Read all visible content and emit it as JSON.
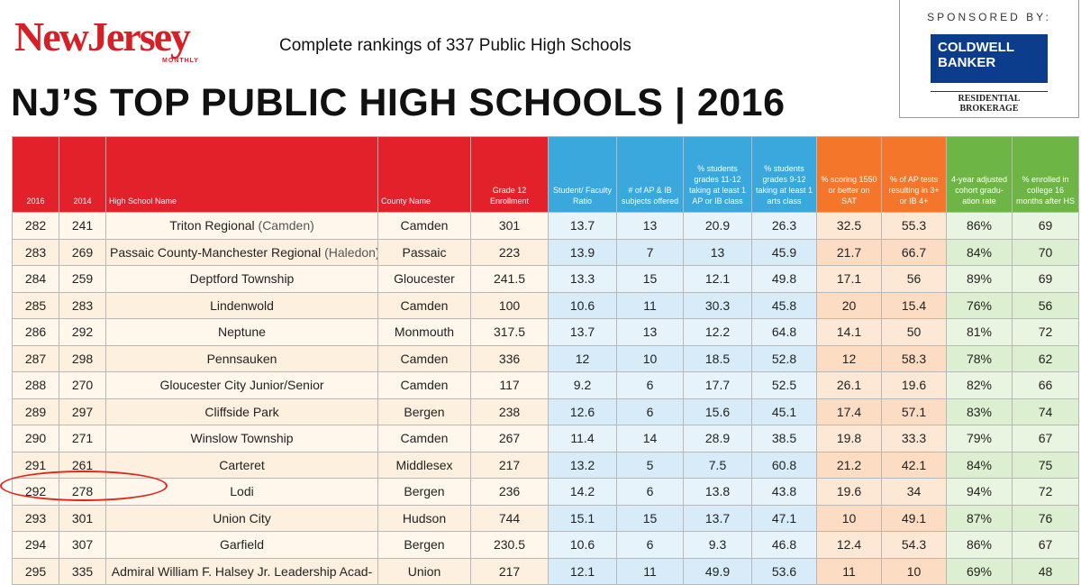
{
  "logo": {
    "main": "NewJersey",
    "sub": "MONTHLY"
  },
  "tagline": "Complete rankings of 337 Public High Schools",
  "headline": "NJ’S TOP PUBLIC HIGH SCHOOLS | 2016",
  "sponsor": {
    "label": "SPONSORED BY:",
    "brand_line1": "COLDWELL",
    "brand_line2": "BANKER",
    "brand_sub": "RESIDENTIAL BROKERAGE"
  },
  "table": {
    "headers": {
      "y2016": "2016",
      "y2014": "2014",
      "name": "High School Name",
      "county": "County Name",
      "enroll": "Grade 12 Enrollment",
      "ratio": "Student/ Faculty Ratio",
      "ap_subjects": "# of AP & IB subjects offered",
      "ap_class": "% students grades 11-12 taking at least 1 AP or IB class",
      "arts": "% students grades 9-12 taking at least 1 arts class",
      "sat": "% scoring 1550 or better on SAT",
      "ap_tests": "% of AP tests resulting in 3+ or IB 4+",
      "grad": "4-year adjusted cohort gradu- ation rate",
      "college": "% enrolled in college 16 months after HS"
    },
    "rows": [
      {
        "r2016": "282",
        "r2014": "241",
        "name": "Triton Regional",
        "note": "(Camden)",
        "county": "Camden",
        "enroll": "301",
        "ratio": "13.7",
        "ap": "13",
        "apc": "20.9",
        "arts": "26.3",
        "sat": "32.5",
        "apt": "55.3",
        "grad": "86%",
        "college": "69"
      },
      {
        "r2016": "283",
        "r2014": "269",
        "name": "Passaic County-Manchester Regional",
        "note": "(Haledon)",
        "county": "Passaic",
        "enroll": "223",
        "ratio": "13.9",
        "ap": "7",
        "apc": "13",
        "arts": "45.9",
        "sat": "21.7",
        "apt": "66.7",
        "grad": "84%",
        "college": "70"
      },
      {
        "r2016": "284",
        "r2014": "259",
        "name": "Deptford Township",
        "note": "",
        "county": "Gloucester",
        "enroll": "241.5",
        "ratio": "13.3",
        "ap": "15",
        "apc": "12.1",
        "arts": "49.8",
        "sat": "17.1",
        "apt": "56",
        "grad": "89%",
        "college": "69"
      },
      {
        "r2016": "285",
        "r2014": "283",
        "name": "Lindenwold",
        "note": "",
        "county": "Camden",
        "enroll": "100",
        "ratio": "10.6",
        "ap": "11",
        "apc": "30.3",
        "arts": "45.8",
        "sat": "20",
        "apt": "15.4",
        "grad": "76%",
        "college": "56"
      },
      {
        "r2016": "286",
        "r2014": "292",
        "name": "Neptune",
        "note": "",
        "county": "Monmouth",
        "enroll": "317.5",
        "ratio": "13.7",
        "ap": "13",
        "apc": "12.2",
        "arts": "64.8",
        "sat": "14.1",
        "apt": "50",
        "grad": "81%",
        "college": "72"
      },
      {
        "r2016": "287",
        "r2014": "298",
        "name": "Pennsauken",
        "note": "",
        "county": "Camden",
        "enroll": "336",
        "ratio": "12",
        "ap": "10",
        "apc": "18.5",
        "arts": "52.8",
        "sat": "12",
        "apt": "58.3",
        "grad": "78%",
        "college": "62"
      },
      {
        "r2016": "288",
        "r2014": "270",
        "name": "Gloucester City Junior/Senior",
        "note": "",
        "county": "Camden",
        "enroll": "117",
        "ratio": "9.2",
        "ap": "6",
        "apc": "17.7",
        "arts": "52.5",
        "sat": "26.1",
        "apt": "19.6",
        "grad": "82%",
        "college": "66"
      },
      {
        "r2016": "289",
        "r2014": "297",
        "name": "Cliffside Park",
        "note": "",
        "county": "Bergen",
        "enroll": "238",
        "ratio": "12.6",
        "ap": "6",
        "apc": "15.6",
        "arts": "45.1",
        "sat": "17.4",
        "apt": "57.1",
        "grad": "83%",
        "college": "74"
      },
      {
        "r2016": "290",
        "r2014": "271",
        "name": "Winslow Township",
        "note": "",
        "county": "Camden",
        "enroll": "267",
        "ratio": "11.4",
        "ap": "14",
        "apc": "28.9",
        "arts": "38.5",
        "sat": "19.8",
        "apt": "33.3",
        "grad": "79%",
        "college": "67"
      },
      {
        "r2016": "291",
        "r2014": "261",
        "name": "Carteret",
        "note": "",
        "county": "Middlesex",
        "enroll": "217",
        "ratio": "13.2",
        "ap": "5",
        "apc": "7.5",
        "arts": "60.8",
        "sat": "21.2",
        "apt": "42.1",
        "grad": "84%",
        "college": "75"
      },
      {
        "r2016": "292",
        "r2014": "278",
        "name": "Lodi",
        "note": "",
        "county": "Bergen",
        "enroll": "236",
        "ratio": "14.2",
        "ap": "6",
        "apc": "13.8",
        "arts": "43.8",
        "sat": "19.6",
        "apt": "34",
        "grad": "94%",
        "college": "72"
      },
      {
        "r2016": "293",
        "r2014": "301",
        "name": "Union City",
        "note": "",
        "county": "Hudson",
        "enroll": "744",
        "ratio": "15.1",
        "ap": "15",
        "apc": "13.7",
        "arts": "47.1",
        "sat": "10",
        "apt": "49.1",
        "grad": "87%",
        "college": "76"
      },
      {
        "r2016": "294",
        "r2014": "307",
        "name": "Garfield",
        "note": "",
        "county": "Bergen",
        "enroll": "230.5",
        "ratio": "10.6",
        "ap": "6",
        "apc": "9.3",
        "arts": "46.8",
        "sat": "12.4",
        "apt": "54.3",
        "grad": "86%",
        "college": "67"
      },
      {
        "r2016": "295",
        "r2014": "335",
        "name": "Admiral William F. Halsey Jr. Leadership Acad-",
        "note": "",
        "county": "Union",
        "enroll": "217",
        "ratio": "12.1",
        "ap": "11",
        "apc": "49.9",
        "arts": "53.6",
        "sat": "11",
        "apt": "10",
        "grad": "69%",
        "college": "48"
      }
    ]
  },
  "highlight": {
    "row_rank": "292",
    "color": "#e2231a"
  }
}
